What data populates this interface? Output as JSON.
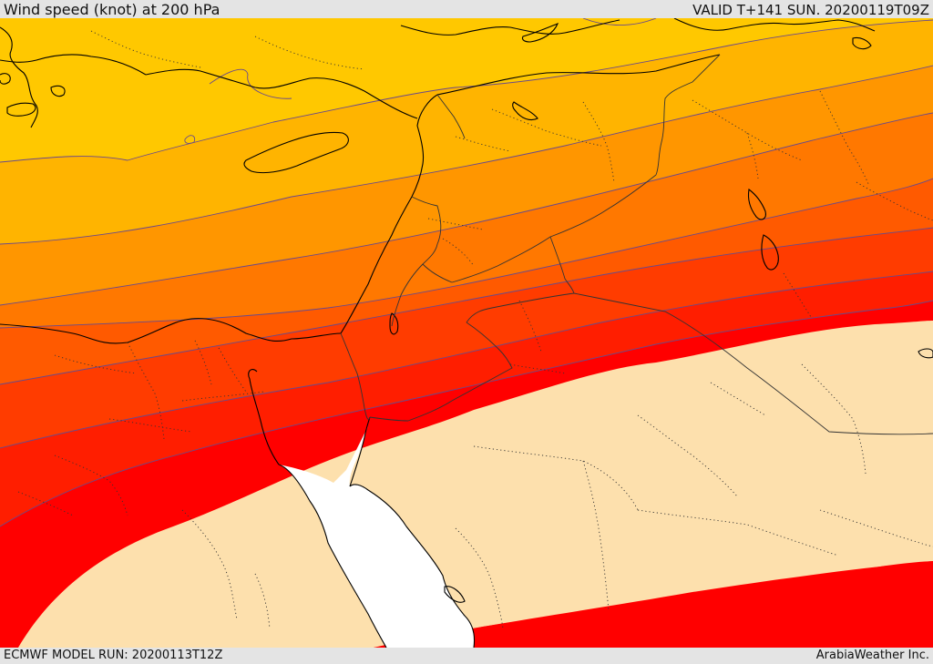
{
  "header": {
    "title": "Wind speed (knot) at 200 hPa",
    "valid_label": "VALID T+141 SUN. 20200119T09Z"
  },
  "footer": {
    "model_run": "ECMWF MODEL RUN: 20200113T12Z",
    "credit": "ArabiaWeather Inc."
  },
  "map": {
    "variable": "Wind speed",
    "units": "knot",
    "level": "200 hPa",
    "shading_colors": [
      "#fde0ad",
      "#ff0000",
      "#ff1e00",
      "#ff3c00",
      "#ff5a00",
      "#ff7800",
      "#ff9600",
      "#ffb400",
      "#ffc800",
      "#ffdb00"
    ],
    "sea_color": "#ffffff",
    "contour_color": "#6a4a8a",
    "coastline_color": "#000000",
    "border_color": "#333333"
  }
}
